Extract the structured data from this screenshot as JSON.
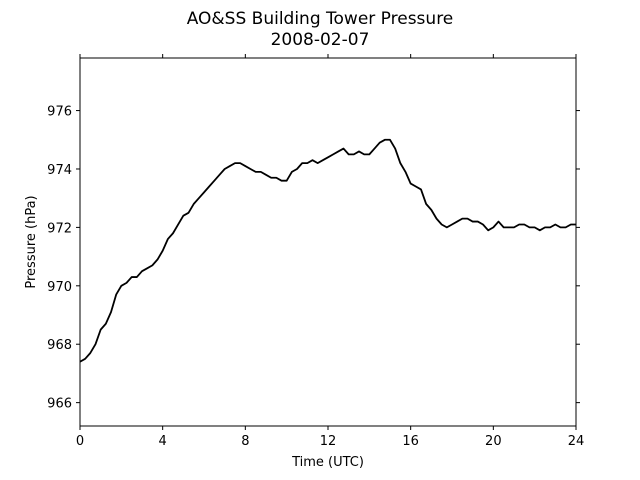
{
  "chart_data": {
    "type": "line",
    "title": "AO&SS Building Tower Pressure",
    "subtitle": "2008-02-07",
    "xlabel": "Time (UTC)",
    "ylabel": "Pressure (hPa)",
    "xlim": [
      0,
      24
    ],
    "ylim": [
      965.2,
      977.8
    ],
    "xticks": [
      0,
      4,
      8,
      12,
      16,
      20,
      24
    ],
    "yticks": [
      966,
      968,
      970,
      972,
      974,
      976
    ],
    "grid": false,
    "line_color": "#000000",
    "series": [
      {
        "x": [
          0,
          0.25,
          0.5,
          0.75,
          1,
          1.25,
          1.5,
          1.75,
          2,
          2.25,
          2.5,
          2.75,
          3,
          3.25,
          3.5,
          3.75,
          4,
          4.25,
          4.5,
          4.75,
          5,
          5.25,
          5.5,
          5.75,
          6,
          6.25,
          6.5,
          6.75,
          7,
          7.25,
          7.5,
          7.75,
          8,
          8.25,
          8.5,
          8.75,
          9,
          9.25,
          9.5,
          9.75,
          10,
          10.25,
          10.5,
          10.75,
          11,
          11.25,
          11.5,
          11.75,
          12,
          12.25,
          12.5,
          12.75,
          13,
          13.25,
          13.5,
          13.75,
          14,
          14.25,
          14.5,
          14.75,
          15,
          15.25,
          15.5,
          15.75,
          16,
          16.25,
          16.5,
          16.75,
          17,
          17.25,
          17.5,
          17.75,
          18,
          18.25,
          18.5,
          18.75,
          19,
          19.25,
          19.5,
          19.75,
          20,
          20.25,
          20.5,
          20.75,
          21,
          21.25,
          21.5,
          21.75,
          22,
          22.25,
          22.5,
          22.75,
          23,
          23.25,
          23.5,
          23.75,
          24
        ],
        "y": [
          967.4,
          967.5,
          967.7,
          968.0,
          968.5,
          968.7,
          969.1,
          969.7,
          970.0,
          970.1,
          970.3,
          970.3,
          970.5,
          970.6,
          970.7,
          970.9,
          971.2,
          971.6,
          971.8,
          972.1,
          972.4,
          972.5,
          972.8,
          973.0,
          973.2,
          973.4,
          973.6,
          973.8,
          974.0,
          974.1,
          974.2,
          974.2,
          974.1,
          974.0,
          973.9,
          973.9,
          973.8,
          973.7,
          973.7,
          973.6,
          973.6,
          973.9,
          974.0,
          974.2,
          974.2,
          974.3,
          974.2,
          974.3,
          974.4,
          974.5,
          974.6,
          974.7,
          974.5,
          974.5,
          974.6,
          974.5,
          974.5,
          974.7,
          974.9,
          975.0,
          975.0,
          974.7,
          974.2,
          973.9,
          973.5,
          973.4,
          973.3,
          972.8,
          972.6,
          972.3,
          972.1,
          972.0,
          972.1,
          972.2,
          972.3,
          972.3,
          972.2,
          972.2,
          972.1,
          971.9,
          972.0,
          972.2,
          972.0,
          972.0,
          972.0,
          972.1,
          972.1,
          972.0,
          972.0,
          971.9,
          972.0,
          972.0,
          972.1,
          972.0,
          972.0,
          972.1,
          972.1
        ]
      }
    ]
  }
}
